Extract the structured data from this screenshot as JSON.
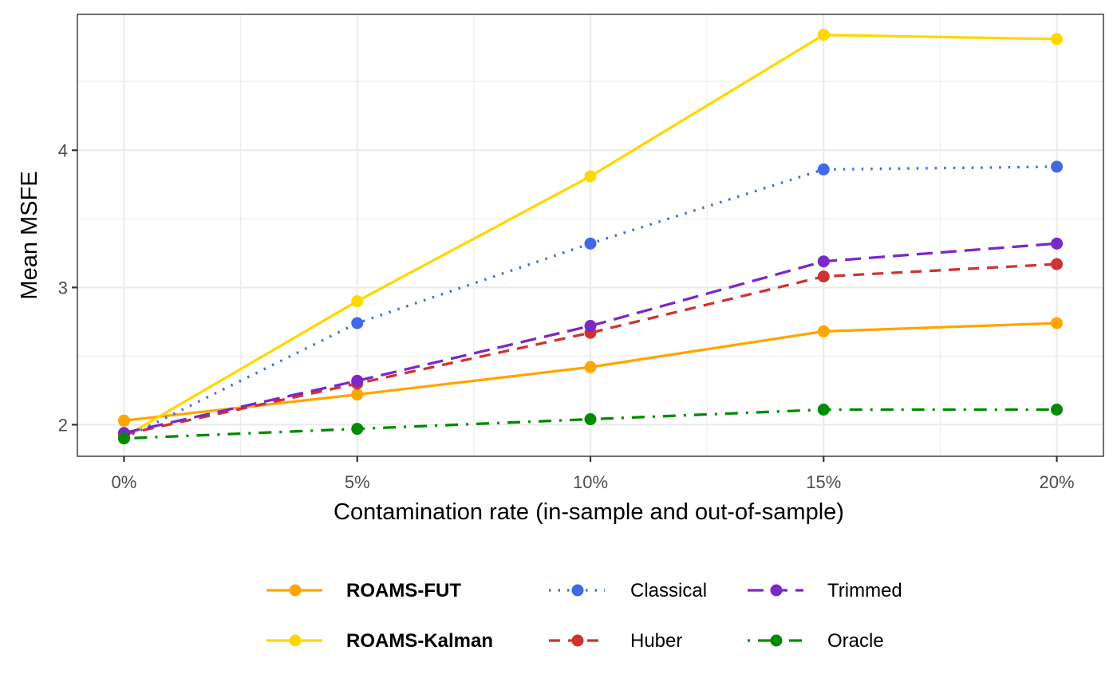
{
  "chart_data": {
    "type": "line",
    "title": "",
    "xlabel": "Contamination rate (in-sample and out-of-sample)",
    "ylabel": "Mean MSFE",
    "categories": [
      "0%",
      "5%",
      "10%",
      "15%",
      "20%"
    ],
    "x": [
      0,
      5,
      10,
      15,
      20
    ],
    "ylim": [
      1.77,
      4.99
    ],
    "yticks": [
      2,
      3,
      4
    ],
    "ytick_labels": [
      "2",
      "3",
      "4"
    ],
    "grid": true,
    "legend_position": "bottom",
    "series": [
      {
        "name": "ROAMS-FUT",
        "color": "#FFA500",
        "linetype": "solid",
        "bold_label": true,
        "values": [
          2.03,
          2.22,
          2.42,
          2.68,
          2.74
        ]
      },
      {
        "name": "ROAMS-Kalman",
        "color": "#FFD700",
        "linetype": "solid",
        "bold_label": true,
        "values": [
          1.91,
          2.9,
          3.81,
          4.84,
          4.81
        ]
      },
      {
        "name": "Classical",
        "color": "#4169E1",
        "linetype": "dotted",
        "bold_label": false,
        "values": [
          1.9,
          2.74,
          3.32,
          3.86,
          3.88
        ]
      },
      {
        "name": "Huber",
        "color": "#CD3333",
        "linetype": "dashed",
        "bold_label": false,
        "values": [
          1.93,
          2.3,
          2.67,
          3.08,
          3.17
        ]
      },
      {
        "name": "Trimmed",
        "color": "#7B28C8",
        "linetype": "longdash",
        "bold_label": false,
        "values": [
          1.94,
          2.32,
          2.72,
          3.19,
          3.32
        ]
      },
      {
        "name": "Oracle",
        "color": "#008B00",
        "linetype": "dotdash",
        "bold_label": false,
        "values": [
          1.9,
          1.97,
          2.04,
          2.11,
          2.11
        ]
      }
    ]
  }
}
